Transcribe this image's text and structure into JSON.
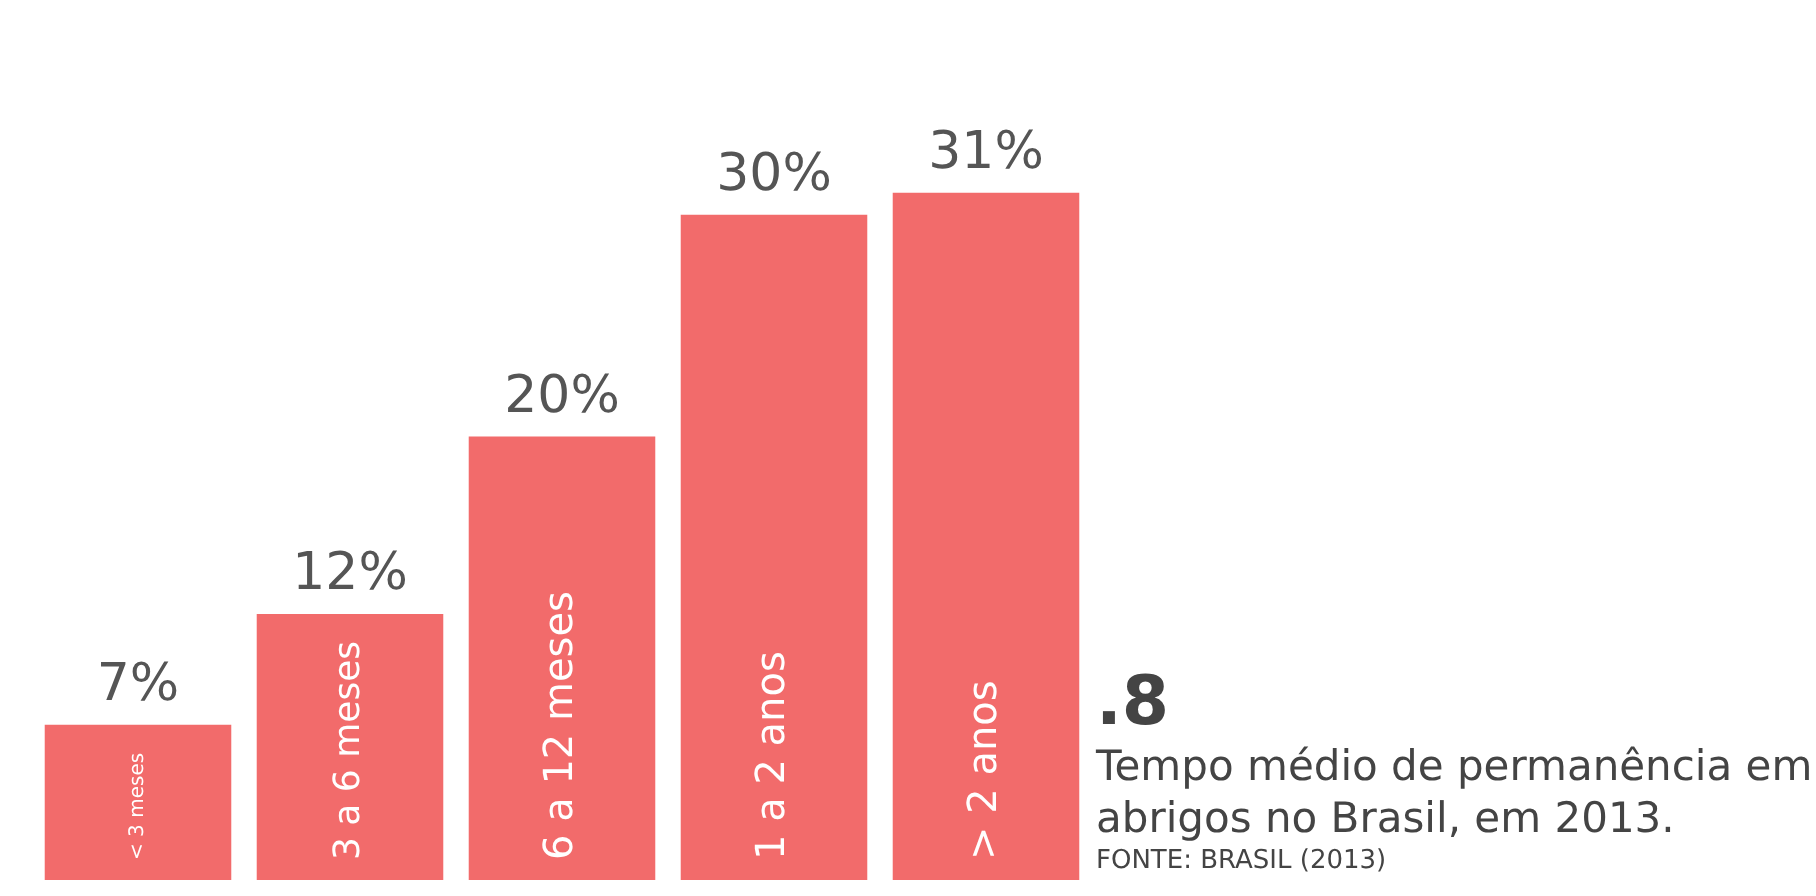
{
  "chart_data": {
    "type": "bar",
    "title": ".8",
    "subtitle": "Tempo médio de permanência em abrigos no Brasil, em 2013.",
    "annotations": [
      "FONTE: BRASIL (2013)"
    ],
    "categories": [
      "< 3 meses",
      "3 a 6 meses",
      "6 a 12 meses",
      "1 a 2 anos",
      "> 2 anos"
    ],
    "values": [
      7,
      12,
      20,
      30,
      31
    ],
    "value_labels": [
      "7%",
      "12%",
      "20%",
      "30%",
      "31%"
    ],
    "color": "#f26b6b"
  }
}
